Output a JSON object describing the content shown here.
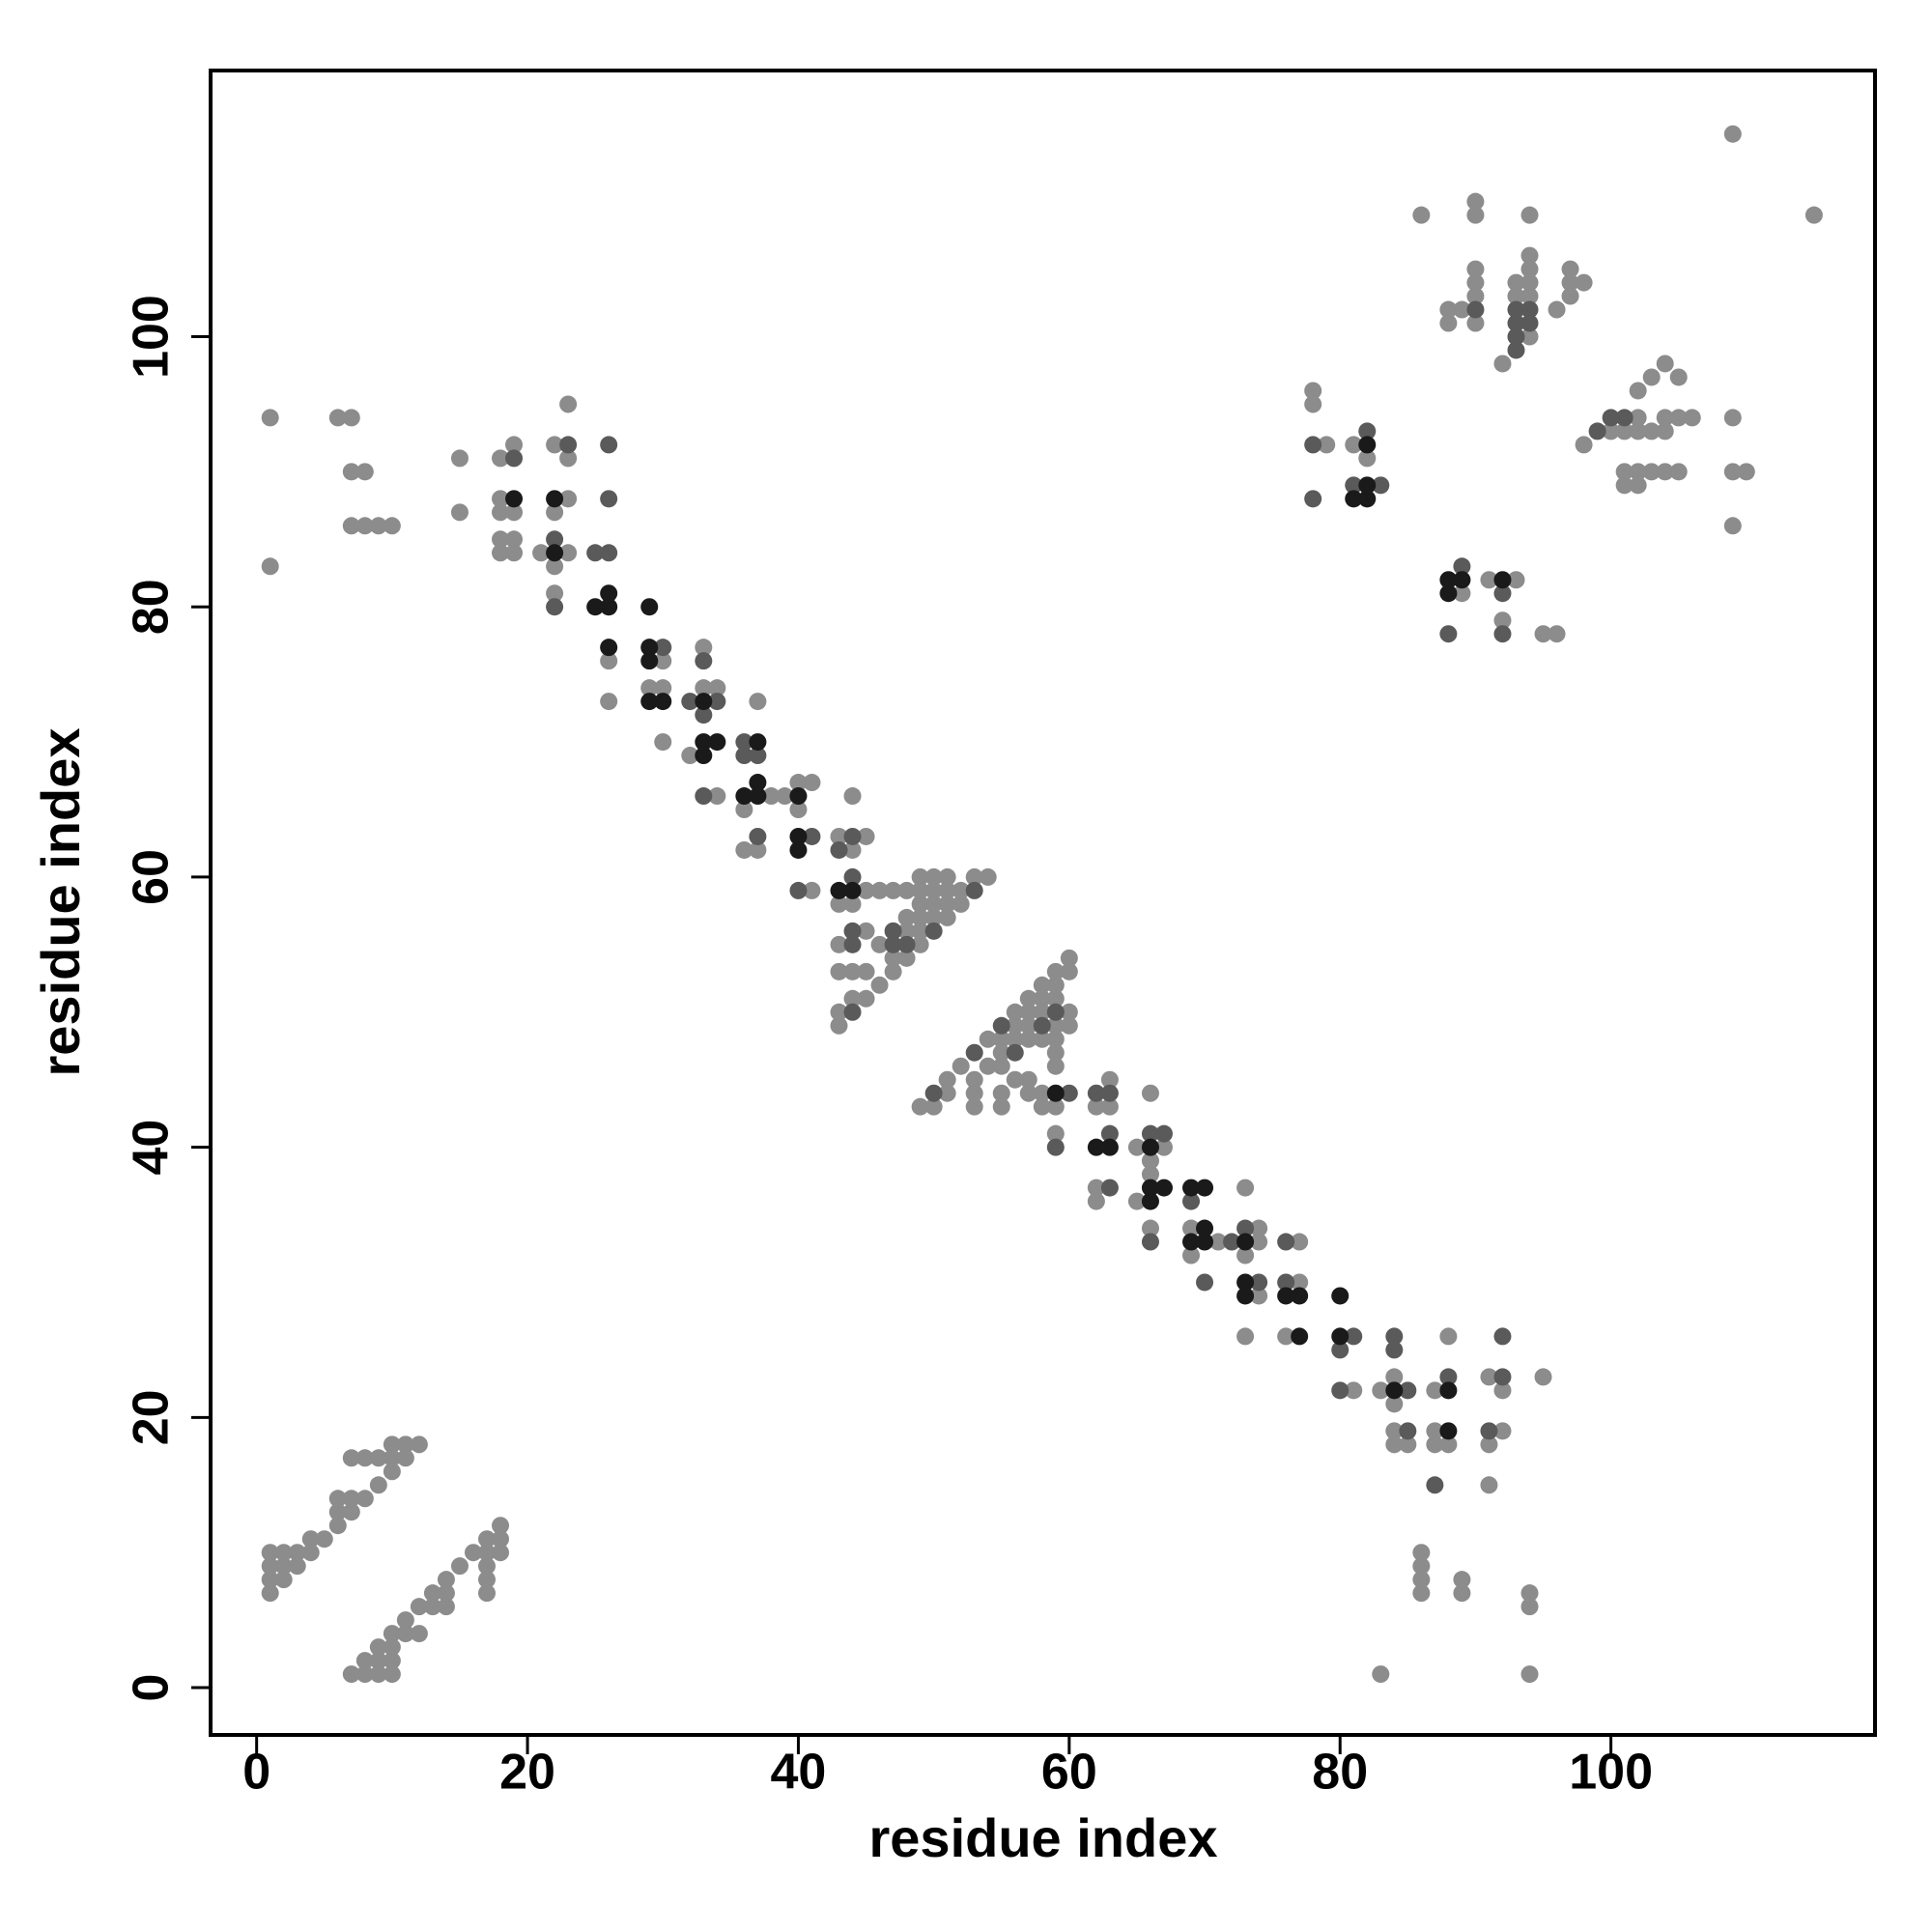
{
  "chart_data": {
    "type": "scatter",
    "x_label": "residue index",
    "y_label": "residue index",
    "xlim": [
      -3.4,
      119.5
    ],
    "ylim": [
      -3.5,
      119.7
    ],
    "xticks": [
      0,
      20,
      40,
      60,
      80,
      100
    ],
    "yticks": [
      0,
      20,
      40,
      60,
      80,
      100
    ],
    "grid": false,
    "series": [
      {
        "color": "#8c8c8c",
        "x": [
          1,
          1,
          1,
          1,
          2,
          2,
          2,
          3,
          3,
          4,
          4,
          5,
          6,
          6,
          6,
          7,
          7,
          7,
          8,
          8,
          9,
          9,
          10,
          10,
          10,
          11,
          11,
          12,
          7,
          8,
          8,
          9,
          9,
          9,
          10,
          10,
          10,
          10,
          11,
          11,
          12,
          12,
          13,
          13,
          14,
          14,
          14,
          15,
          16,
          17,
          17,
          17,
          17,
          17,
          18,
          18,
          18,
          1,
          1,
          6,
          7,
          7,
          8,
          7,
          8,
          9,
          10,
          15,
          15,
          18,
          18,
          18,
          18,
          18,
          19,
          19,
          19,
          19,
          21,
          22,
          22,
          22,
          22,
          23,
          23,
          23,
          23,
          26,
          26,
          29,
          30,
          30,
          30,
          32,
          33,
          33,
          34,
          34,
          36,
          36,
          37,
          37,
          38,
          39,
          40,
          40,
          41,
          41,
          43,
          43,
          43,
          43,
          43,
          43,
          44,
          44,
          44,
          44,
          44,
          45,
          45,
          45,
          45,
          45,
          46,
          46,
          46,
          47,
          47,
          47,
          48,
          48,
          48,
          48,
          49,
          49,
          49,
          49,
          49,
          49,
          50,
          50,
          50,
          50,
          51,
          51,
          51,
          51,
          52,
          52,
          53,
          54,
          49,
          50,
          51,
          51,
          52,
          53,
          53,
          53,
          54,
          54,
          55,
          55,
          55,
          55,
          55,
          56,
          56,
          56,
          56,
          57,
          57,
          57,
          57,
          57,
          57,
          58,
          58,
          58,
          58,
          58,
          58,
          59,
          59,
          59,
          59,
          59,
          59,
          59,
          59,
          59,
          60,
          60,
          60,
          60,
          62,
          62,
          62,
          63,
          63,
          65,
          65,
          66,
          66,
          66,
          66,
          67,
          69,
          69,
          71,
          73,
          73,
          73,
          74,
          74,
          74,
          76,
          77,
          77,
          81,
          83,
          84,
          84,
          84,
          84,
          85,
          87,
          87,
          87,
          88,
          88,
          91,
          91,
          91,
          92,
          92,
          95,
          83,
          86,
          86,
          86,
          86,
          89,
          89,
          94,
          94,
          94,
          78,
          78,
          79,
          81,
          82,
          89,
          91,
          92,
          93,
          95,
          96,
          86,
          88,
          88,
          89,
          90,
          90,
          90,
          90,
          90,
          90,
          92,
          93,
          93,
          94,
          94,
          94,
          94,
          94,
          94,
          96,
          97,
          97,
          97,
          98,
          98,
          100,
          101,
          101,
          101,
          102,
          102,
          102,
          102,
          102,
          103,
          103,
          103,
          104,
          104,
          104,
          104,
          105,
          105,
          105,
          106,
          109,
          109,
          109,
          110,
          109,
          115
        ],
        "values": [
          10,
          9,
          8,
          7,
          10,
          9,
          8,
          10,
          9,
          11,
          10,
          11,
          12,
          13,
          14,
          13,
          14,
          17,
          14,
          17,
          15,
          17,
          16,
          17,
          18,
          17,
          18,
          18,
          1,
          1,
          2,
          1,
          2,
          3,
          1,
          2,
          3,
          4,
          4,
          5,
          4,
          6,
          6,
          7,
          6,
          7,
          8,
          9,
          10,
          10,
          11,
          9,
          8,
          7,
          10,
          11,
          12,
          94,
          83,
          94,
          94,
          90,
          90,
          86,
          86,
          86,
          86,
          91,
          87,
          91,
          88,
          87,
          85,
          84,
          92,
          87,
          85,
          84,
          84,
          92,
          87,
          83,
          81,
          95,
          91,
          88,
          84,
          76,
          73,
          74,
          76,
          74,
          70,
          69,
          77,
          74,
          74,
          66,
          65,
          62,
          73,
          62,
          66,
          66,
          67,
          65,
          67,
          59,
          63,
          58,
          55,
          53,
          50,
          49,
          66,
          62,
          58,
          53,
          51,
          63,
          59,
          56,
          53,
          51,
          59,
          55,
          52,
          59,
          54,
          53,
          59,
          57,
          56,
          54,
          60,
          59,
          58,
          57,
          56,
          55,
          60,
          59,
          58,
          57,
          60,
          59,
          58,
          57,
          59,
          58,
          60,
          60,
          43,
          43,
          44,
          45,
          46,
          45,
          44,
          43,
          48,
          46,
          48,
          47,
          46,
          44,
          43,
          50,
          49,
          48,
          45,
          51,
          50,
          49,
          48,
          45,
          44,
          52,
          51,
          50,
          48,
          44,
          43,
          53,
          52,
          51,
          49,
          48,
          47,
          46,
          43,
          41,
          54,
          53,
          50,
          49,
          43,
          37,
          36,
          45,
          43,
          40,
          36,
          44,
          39,
          38,
          34,
          40,
          34,
          32,
          33,
          37,
          32,
          26,
          34,
          33,
          29,
          26,
          33,
          30,
          22,
          22,
          23,
          21,
          19,
          18,
          18,
          22,
          19,
          18,
          26,
          18,
          23,
          18,
          15,
          22,
          19,
          23,
          1,
          10,
          9,
          8,
          7,
          8,
          7,
          7,
          6,
          1,
          96,
          95,
          92,
          92,
          91,
          81,
          82,
          79,
          82,
          78,
          78,
          109,
          102,
          101,
          102,
          110,
          109,
          105,
          104,
          103,
          101,
          98,
          104,
          103,
          109,
          106,
          105,
          104,
          103,
          100,
          102,
          105,
          104,
          103,
          104,
          92,
          93,
          93,
          90,
          89,
          94,
          93,
          90,
          89,
          96,
          97,
          93,
          90,
          98,
          94,
          93,
          90,
          97,
          94,
          90,
          94,
          94,
          90,
          86,
          90,
          115,
          109
        ]
      },
      {
        "color": "#5a5a5a",
        "x": [
          19,
          22,
          22,
          23,
          25,
          26,
          26,
          26,
          30,
          32,
          33,
          33,
          33,
          34,
          36,
          36,
          37,
          37,
          40,
          41,
          43,
          44,
          44,
          44,
          44,
          44,
          47,
          47,
          48,
          50,
          53,
          50,
          53,
          55,
          56,
          58,
          59,
          59,
          60,
          62,
          63,
          63,
          63,
          66,
          66,
          67,
          69,
          70,
          72,
          73,
          74,
          76,
          76,
          80,
          80,
          81,
          84,
          84,
          85,
          85,
          87,
          88,
          91,
          92,
          92,
          78,
          78,
          81,
          82,
          83,
          88,
          89,
          92,
          92,
          90,
          93,
          93,
          93,
          93,
          94,
          94,
          99,
          100,
          101
        ],
        "values": [
          91,
          85,
          80,
          92,
          84,
          92,
          88,
          84,
          77,
          73,
          76,
          72,
          66,
          73,
          70,
          69,
          69,
          63,
          59,
          63,
          62,
          63,
          60,
          56,
          55,
          50,
          56,
          55,
          55,
          56,
          59,
          44,
          47,
          49,
          47,
          49,
          50,
          40,
          44,
          44,
          44,
          41,
          37,
          41,
          33,
          41,
          36,
          30,
          33,
          34,
          30,
          33,
          30,
          25,
          22,
          26,
          26,
          25,
          22,
          19,
          15,
          23,
          19,
          26,
          23,
          92,
          88,
          89,
          93,
          89,
          78,
          83,
          81,
          78,
          102,
          102,
          101,
          100,
          99,
          102,
          101,
          93,
          94,
          94
        ]
      },
      {
        "color": "#1a1a1a",
        "x": [
          19,
          22,
          22,
          25,
          26,
          26,
          26,
          29,
          29,
          29,
          29,
          30,
          33,
          33,
          33,
          34,
          36,
          37,
          37,
          37,
          40,
          40,
          40,
          43,
          44,
          59,
          62,
          63,
          66,
          66,
          66,
          67,
          69,
          69,
          70,
          70,
          70,
          73,
          73,
          73,
          76,
          77,
          77,
          80,
          80,
          84,
          88,
          88,
          81,
          82,
          82,
          82,
          88,
          88,
          89,
          92
        ],
        "values": [
          88,
          88,
          84,
          80,
          81,
          80,
          77,
          80,
          77,
          76,
          73,
          73,
          73,
          70,
          69,
          70,
          66,
          70,
          67,
          66,
          66,
          63,
          62,
          59,
          59,
          44,
          40,
          40,
          40,
          37,
          36,
          37,
          37,
          33,
          37,
          34,
          33,
          33,
          30,
          29,
          29,
          29,
          26,
          29,
          26,
          22,
          22,
          19,
          88,
          92,
          89,
          88,
          82,
          81,
          82,
          82
        ]
      }
    ]
  }
}
